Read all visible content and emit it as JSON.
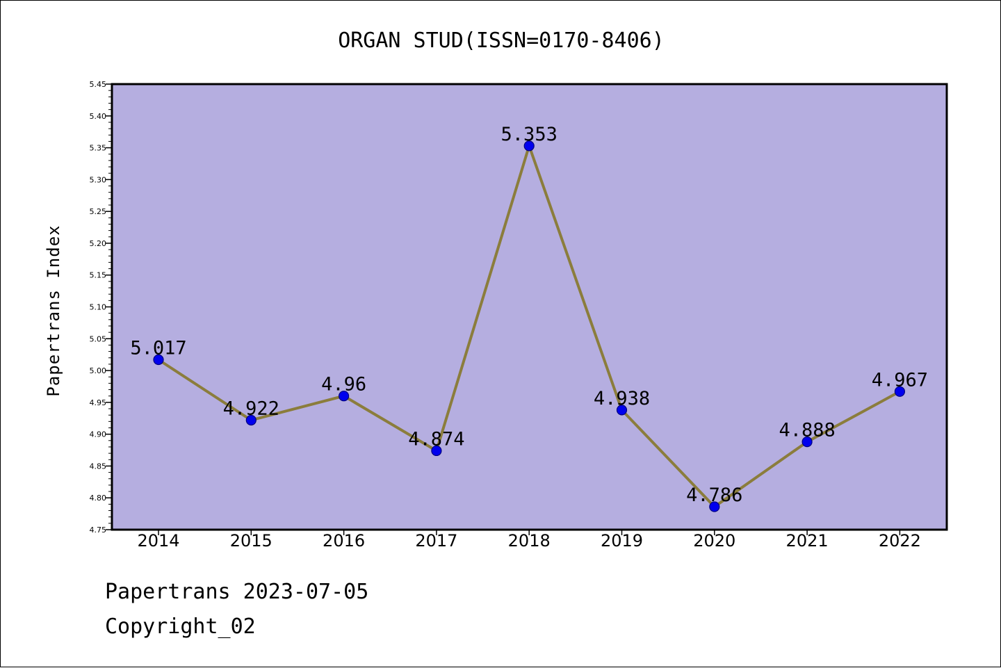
{
  "chart_data": {
    "type": "line",
    "title": "ORGAN STUD(ISSN=0170-8406)",
    "xlabel": "",
    "ylabel": "Papertrans Index",
    "categories": [
      "2014",
      "2015",
      "2016",
      "2017",
      "2018",
      "2019",
      "2020",
      "2021",
      "2022"
    ],
    "series": [
      {
        "values": [
          5.017,
          4.922,
          4.96,
          4.874,
          5.353,
          4.938,
          4.786,
          4.888,
          4.967
        ],
        "value_labels": [
          "5.017",
          "4.922",
          "4.96",
          "4.874",
          "5.353",
          "4.938",
          "4.786",
          "4.888",
          "4.967"
        ]
      }
    ],
    "ylim": [
      4.75,
      5.45
    ],
    "yticks": [
      "4.75",
      "4.80",
      "4.85",
      "4.90",
      "4.95",
      "5.00",
      "5.05",
      "5.10",
      "5.15",
      "5.20",
      "5.25",
      "5.30",
      "5.35",
      "5.40",
      "5.45"
    ],
    "grid": false,
    "legend": "none",
    "colors": {
      "plot_background": "#b5aee0",
      "line": "#8b7d3c",
      "marker_fill": "#0000ee",
      "marker_edge": "#000080",
      "axes": "#000000"
    }
  },
  "footer": {
    "line1": "Papertrans 2023-07-05",
    "line2": "Copyright_02"
  }
}
